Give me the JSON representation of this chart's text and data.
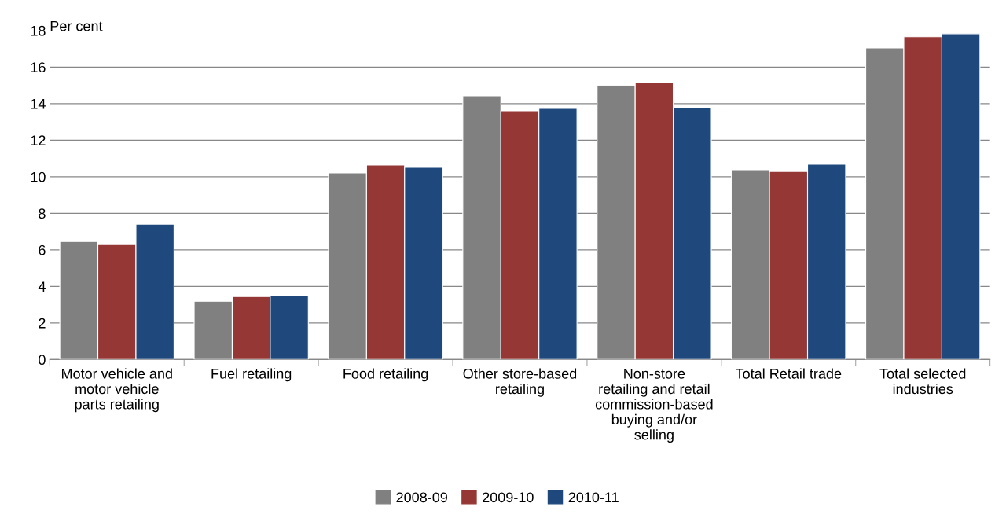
{
  "chart_data": {
    "type": "bar",
    "ylabel": "Per cent",
    "categories": [
      "Motor vehicle and\nmotor vehicle\nparts retailing",
      "Fuel retailing",
      "Food retailing",
      "Other store-based\nretailing",
      "Non-store\nretailing and retail\ncommission-based\nbuying and/or\nselling",
      "Total Retail trade",
      "Total selected\nindustries"
    ],
    "series": [
      {
        "name": "2008-09",
        "color": "#808080",
        "values": [
          6.46,
          3.19,
          10.21,
          14.43,
          14.99,
          10.38,
          17.05
        ]
      },
      {
        "name": "2009-10",
        "color": "#953735",
        "values": [
          6.29,
          3.45,
          10.64,
          13.61,
          15.16,
          10.29,
          17.66
        ]
      },
      {
        "name": "2010-11",
        "color": "#1f497d",
        "values": [
          7.41,
          3.49,
          10.51,
          13.74,
          13.78,
          10.68,
          17.83
        ]
      }
    ],
    "ylim": [
      0,
      18
    ],
    "yticks": [
      0,
      2,
      4,
      6,
      8,
      10,
      12,
      14,
      16,
      18
    ],
    "grid": "y",
    "legend": "bottom"
  }
}
